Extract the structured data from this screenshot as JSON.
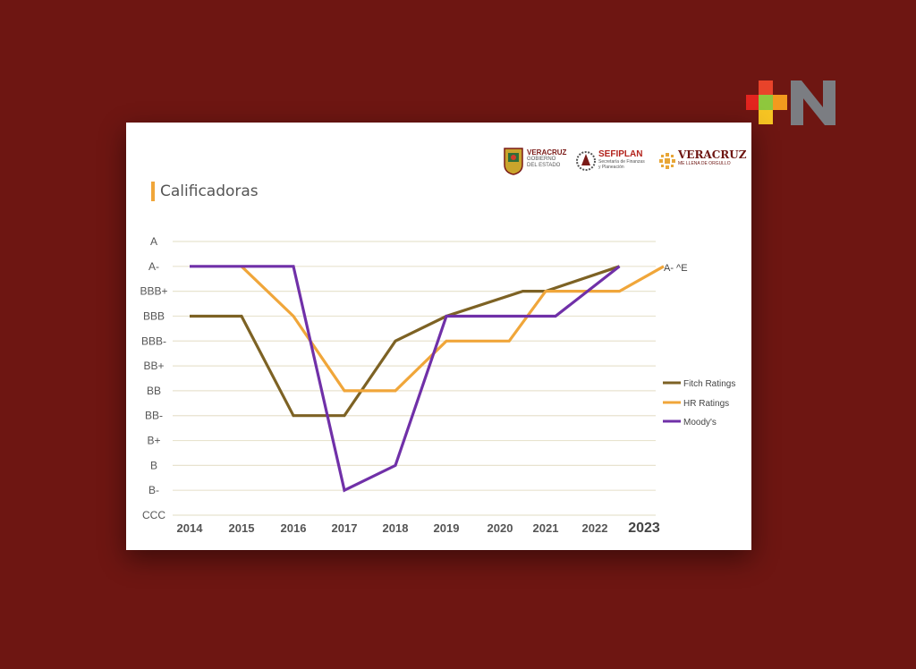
{
  "brand": {
    "logo_text": "+N"
  },
  "card": {
    "title": "Calificadoras",
    "logos": {
      "veracruz_gov_line1": "VERACRUZ",
      "veracruz_gov_line2": "GOBIERNO",
      "veracruz_gov_line3": "DEL ESTADO",
      "sefiplan_main": "SEFIPLAN",
      "sefiplan_sub1": "Secretaría de Finanzas",
      "sefiplan_sub2": "y Planeación",
      "veracruz_brand_main": "VERACRUZ",
      "veracruz_brand_sub": "ME LLENA DE ORGULLO"
    }
  },
  "colors": {
    "background": "#6e1612",
    "fitch": "#7d6224",
    "hr": "#f0a63a",
    "moodys": "#7030a8",
    "grid": "#e8e3cf",
    "title_accent": "#f0a63a"
  },
  "chart_data": {
    "type": "line",
    "title": "Calificadoras",
    "y_categories": [
      "CCC",
      "B-",
      "B",
      "B+",
      "BB-",
      "BB",
      "BB+",
      "BBB-",
      "BBB",
      "BBB+",
      "A-",
      "A"
    ],
    "x": [
      "2014",
      "2015",
      "2016",
      "2017",
      "2018",
      "2019",
      "2020",
      "2021",
      "2022",
      "2023"
    ],
    "series": [
      {
        "name": "Fitch Ratings",
        "color": "#7d6224",
        "points": [
          {
            "x": 2014,
            "y": "BBB"
          },
          {
            "x": 2015,
            "y": "BBB"
          },
          {
            "x": 2016,
            "y": "BB-"
          },
          {
            "x": 2017,
            "y": "BB-"
          },
          {
            "x": 2018,
            "y": "BBB-"
          },
          {
            "x": 2019,
            "y": "BBB"
          },
          {
            "x": 2020.5,
            "y": "BBB+"
          },
          {
            "x": 2021,
            "y": "BBB+"
          },
          {
            "x": 2022.5,
            "y": "A-"
          }
        ]
      },
      {
        "name": "HR Ratings",
        "color": "#f0a63a",
        "points": [
          {
            "x": 2015,
            "y": "A-"
          },
          {
            "x": 2016,
            "y": "BBB"
          },
          {
            "x": 2017,
            "y": "BB"
          },
          {
            "x": 2018,
            "y": "BB"
          },
          {
            "x": 2019,
            "y": "BBB-"
          },
          {
            "x": 2020.2,
            "y": "BBB-"
          },
          {
            "x": 2021,
            "y": "BBB+"
          },
          {
            "x": 2022.5,
            "y": "BBB+"
          },
          {
            "x": 2023.4,
            "y": "A-"
          }
        ]
      },
      {
        "name": "Moody's",
        "color": "#7030a8",
        "points": [
          {
            "x": 2014,
            "y": "A-"
          },
          {
            "x": 2016,
            "y": "A-"
          },
          {
            "x": 2017,
            "y": "B-"
          },
          {
            "x": 2018,
            "y": "B"
          },
          {
            "x": 2019,
            "y": "BBB"
          },
          {
            "x": 2020,
            "y": "BBB"
          },
          {
            "x": 2021.2,
            "y": "BBB"
          },
          {
            "x": 2022.5,
            "y": "A-"
          }
        ]
      }
    ],
    "annotation": "A- ^E",
    "grid": true,
    "legend_position": "right"
  }
}
